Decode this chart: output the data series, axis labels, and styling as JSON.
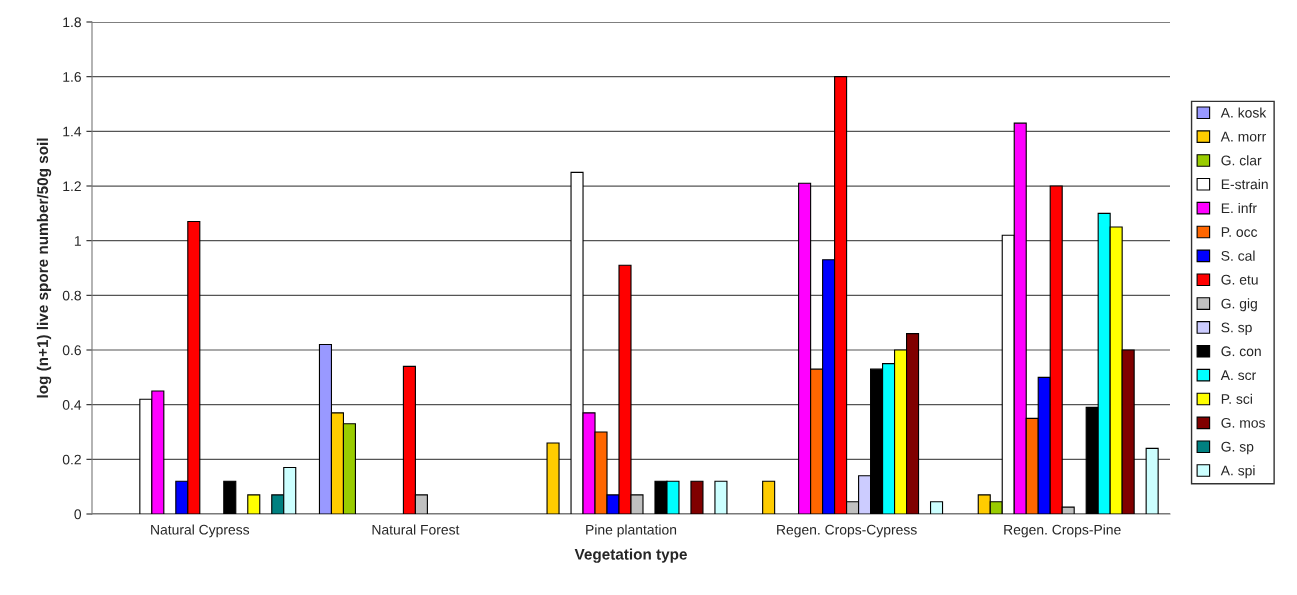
{
  "chart_data": {
    "type": "bar",
    "xlabel": "Vegetation type",
    "ylabel": "log (n+1) live spore number/50g soil",
    "categories": [
      "Natural Cypress",
      "Natural Forest",
      "Pine plantation",
      "Regen. Crops-Cypress",
      "Regen. Crops-Pine"
    ],
    "ylim": [
      0,
      1.8
    ],
    "yticks": [
      0,
      0.2,
      0.4,
      0.6,
      0.8,
      1,
      1.2,
      1.4,
      1.6,
      1.8
    ],
    "grid": "y",
    "legend": "right",
    "series": [
      {
        "name": "A. kosk",
        "color": "#9999ff",
        "values": [
          null,
          0.62,
          null,
          null,
          null
        ]
      },
      {
        "name": "A. morr",
        "color": "#ffcc00",
        "values": [
          null,
          0.37,
          0.26,
          0.12,
          0.07
        ]
      },
      {
        "name": "G. clar",
        "color": "#99cc00",
        "values": [
          null,
          0.33,
          null,
          null,
          0.045
        ]
      },
      {
        "name": "E-strain",
        "color": "#ffffff",
        "values": [
          0.42,
          null,
          1.25,
          null,
          1.02
        ]
      },
      {
        "name": "E. infr",
        "color": "#ff00ff",
        "values": [
          0.45,
          null,
          0.37,
          1.21,
          1.43
        ]
      },
      {
        "name": "P. occ",
        "color": "#ff6600",
        "values": [
          null,
          null,
          0.3,
          0.53,
          0.35
        ]
      },
      {
        "name": "S. cal",
        "color": "#0000ff",
        "values": [
          0.12,
          null,
          0.07,
          0.93,
          0.5
        ]
      },
      {
        "name": "G. etu",
        "color": "#ff0000",
        "values": [
          1.07,
          0.54,
          0.91,
          1.6,
          1.2
        ]
      },
      {
        "name": "G. gig",
        "color": "#c0c0c0",
        "values": [
          null,
          0.07,
          0.07,
          0.045,
          0.025
        ]
      },
      {
        "name": "S. sp",
        "color": "#ccccff",
        "values": [
          null,
          null,
          null,
          0.14,
          null
        ]
      },
      {
        "name": "G. con",
        "color": "#000000",
        "values": [
          0.12,
          null,
          0.12,
          0.53,
          0.39
        ]
      },
      {
        "name": "A. scr",
        "color": "#00ffff",
        "values": [
          null,
          null,
          0.12,
          0.55,
          1.1
        ]
      },
      {
        "name": "P. sci",
        "color": "#ffff00",
        "values": [
          0.07,
          null,
          null,
          0.6,
          1.05
        ]
      },
      {
        "name": "G. mos",
        "color": "#800000",
        "values": [
          null,
          null,
          0.12,
          0.66,
          0.6
        ]
      },
      {
        "name": "G. sp",
        "color": "#008080",
        "values": [
          0.07,
          null,
          null,
          null,
          null
        ]
      },
      {
        "name": "A. spi",
        "color": "#ccffff",
        "values": [
          0.17,
          null,
          0.12,
          0.045,
          0.24
        ]
      }
    ]
  }
}
